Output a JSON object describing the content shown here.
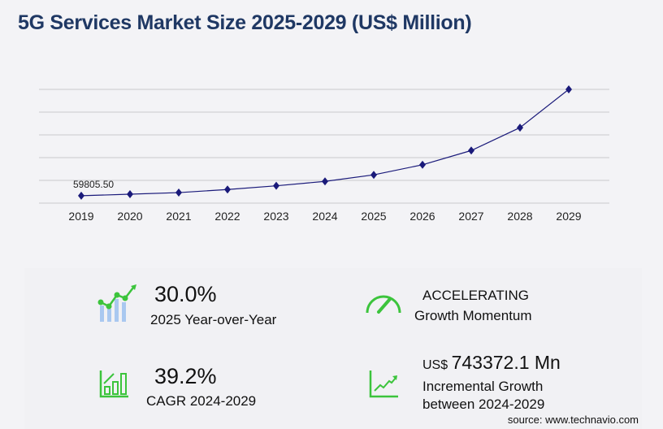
{
  "title": "5G Services Market Size 2025-2029 (US$ Million)",
  "chart_data": {
    "type": "line",
    "title": "5G Services Market Size 2025-2029 (US$ Million)",
    "categories": [
      "2019",
      "2020",
      "2021",
      "2022",
      "2023",
      "2024",
      "2025",
      "2026",
      "2027",
      "2028",
      "2029"
    ],
    "values": [
      59805.5,
      72000,
      85000,
      110000,
      140000,
      175700,
      228400,
      310000,
      425000,
      610000,
      919100
    ],
    "data_labels": [
      {
        "index": 0,
        "text": "59805.50"
      }
    ],
    "ylim": [
      0,
      919100
    ],
    "grid": true,
    "y_tick_labels_shown": false,
    "line_color": "#1a1a7a",
    "marker": "diamond"
  },
  "stats": {
    "yoy": {
      "value": "30.0%",
      "label": "2025 Year-over-Year"
    },
    "momentum": {
      "value": "ACCELERATING",
      "label": "Growth Momentum"
    },
    "cagr": {
      "value": "39.2%",
      "label": "CAGR 2024-2029"
    },
    "incremental": {
      "prefix": "US$",
      "value": "743372.1 Mn",
      "label1": "Incremental Growth",
      "label2": "between 2024-2029"
    }
  },
  "source": "source: www.technavio.com",
  "colors": {
    "accent_green": "#3cc43c",
    "bar_blue": "#a9c8f0",
    "title": "#1f3864"
  }
}
